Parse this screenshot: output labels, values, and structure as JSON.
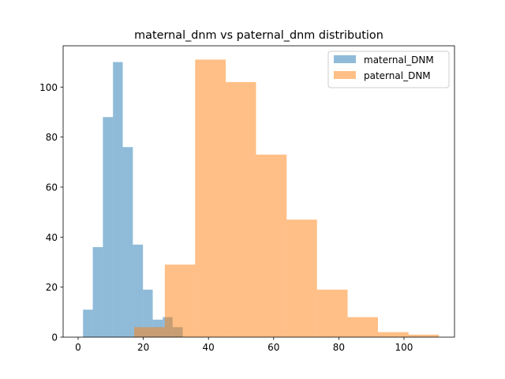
{
  "chart_data": {
    "type": "histogram",
    "title": "maternal_dnm vs paternal_dnm distribution",
    "xlabel": "",
    "ylabel": "",
    "xlim": [
      -4.6,
      115.5
    ],
    "ylim": [
      0,
      116.5
    ],
    "x_ticks": [
      "0",
      "20",
      "40",
      "60",
      "80",
      "100"
    ],
    "y_ticks": [
      "0",
      "20",
      "40",
      "60",
      "80",
      "100"
    ],
    "x_tick_values": [
      0,
      20,
      40,
      60,
      80,
      100
    ],
    "y_tick_values": [
      0,
      20,
      40,
      60,
      80,
      100
    ],
    "grid": false,
    "legend_position": "top-right",
    "series": [
      {
        "name": "maternal_DNM",
        "color": "#1f77b4",
        "opacity": 0.5,
        "bins": [
          {
            "x0": 1.5,
            "x1": 4.5,
            "count": 11
          },
          {
            "x0": 4.5,
            "x1": 7.6,
            "count": 36
          },
          {
            "x0": 7.6,
            "x1": 10.7,
            "count": 88
          },
          {
            "x0": 10.7,
            "x1": 13.7,
            "count": 110
          },
          {
            "x0": 13.7,
            "x1": 16.8,
            "count": 76
          },
          {
            "x0": 16.8,
            "x1": 19.9,
            "count": 37
          },
          {
            "x0": 19.9,
            "x1": 22.9,
            "count": 19
          },
          {
            "x0": 22.9,
            "x1": 26.0,
            "count": 7
          },
          {
            "x0": 26.0,
            "x1": 29.0,
            "count": 8
          },
          {
            "x0": 29.0,
            "x1": 32.1,
            "count": 4
          }
        ]
      },
      {
        "name": "paternal_DNM",
        "color": "#ff7f0e",
        "opacity": 0.5,
        "bins": [
          {
            "x0": 17.2,
            "x1": 26.6,
            "count": 4
          },
          {
            "x0": 26.6,
            "x1": 35.9,
            "count": 29
          },
          {
            "x0": 35.9,
            "x1": 45.3,
            "count": 111
          },
          {
            "x0": 45.3,
            "x1": 54.6,
            "count": 102
          },
          {
            "x0": 54.6,
            "x1": 64.0,
            "count": 73
          },
          {
            "x0": 64.0,
            "x1": 73.3,
            "count": 47
          },
          {
            "x0": 73.3,
            "x1": 82.7,
            "count": 19
          },
          {
            "x0": 82.7,
            "x1": 92.0,
            "count": 8
          },
          {
            "x0": 92.0,
            "x1": 101.4,
            "count": 2
          },
          {
            "x0": 101.4,
            "x1": 110.7,
            "count": 1
          }
        ]
      }
    ]
  }
}
